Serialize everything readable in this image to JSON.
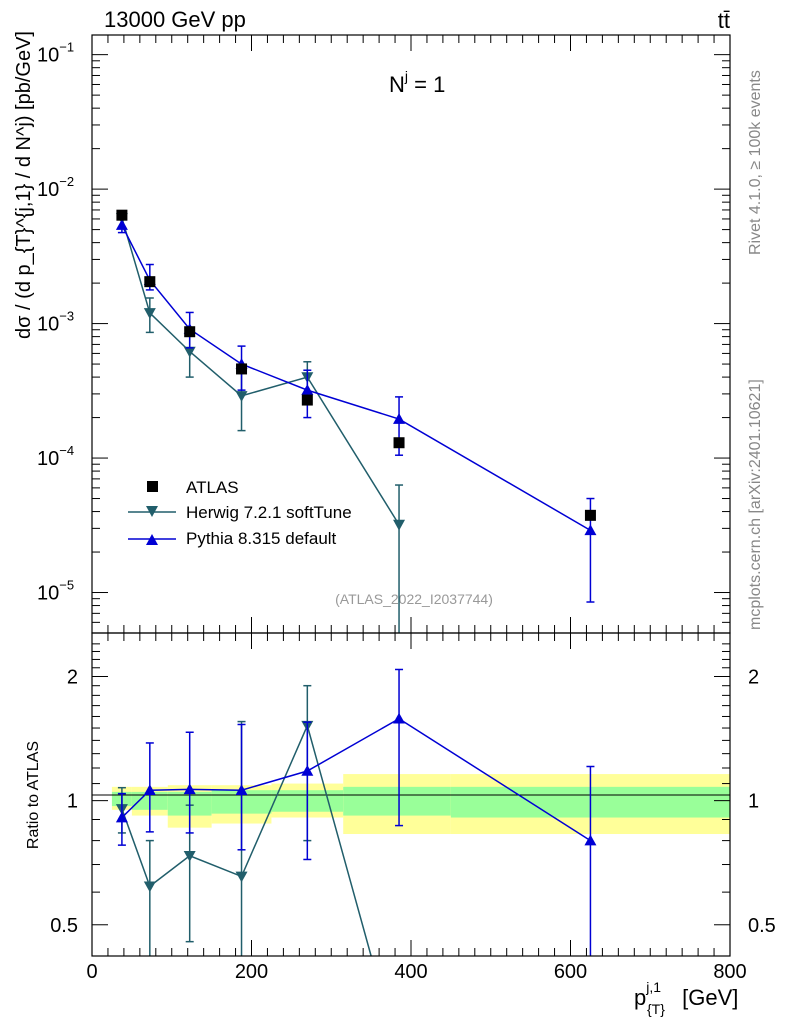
{
  "header": {
    "energy_label": "13000 GeV pp",
    "process_label": "tt̄"
  },
  "side_labels": {
    "rivet": "Rivet 4.1.0, ≥ 100k events",
    "mcplots": "mcplots.cern.ch [arXiv:2401.10621]"
  },
  "chart_data": [
    {
      "type": "line",
      "panel": "main",
      "title": "N^j = 1",
      "title_main": "N",
      "title_sup": "j",
      "title_rest": " = 1",
      "ylabel": "dσ / (d p_{T}^{j,1} / d N^j) [pb/GeV]",
      "yscale": "log",
      "ylim": [
        5e-06,
        0.14
      ],
      "xlim": [
        0,
        800
      ],
      "ytick_labels": [
        {
          "value": 0.1,
          "base": "10",
          "exp": "−1"
        },
        {
          "value": 0.01,
          "base": "10",
          "exp": "−2"
        },
        {
          "value": 0.001,
          "base": "10",
          "exp": "−3"
        },
        {
          "value": 0.0001,
          "base": "10",
          "exp": "−4"
        },
        {
          "value": 1e-05,
          "base": "10",
          "exp": "−5"
        }
      ],
      "watermark": "(ATLAS_2022_I2037744)",
      "legend_position": "bottom-left",
      "series": [
        {
          "name": "ATLAS",
          "style": "square-marker",
          "color": "#000000",
          "x": [
            37.5,
            72.5,
            122.5,
            187.5,
            270,
            385,
            625
          ],
          "y": [
            0.0064,
            0.00205,
            0.00087,
            0.00046,
            0.00027,
            0.00013,
            3.75e-05
          ]
        },
        {
          "name": "Herwig 7.2.1 softTune",
          "style": "line-triangle-down",
          "color": "#215e6b",
          "x": [
            37.5,
            72.5,
            122.5,
            187.5,
            270,
            385
          ],
          "y": [
            0.0061,
            0.0012,
            0.00062,
            0.00029,
            0.0004,
            3.2e-05
          ],
          "yerr_low": [
            0.0009,
            0.00034,
            0.00022,
            0.00013,
            0.00012,
            3.15e-05
          ],
          "yerr_high": [
            0.0006,
            0.00035,
            0.0002,
            0.00015,
            0.00012,
            3.1e-05
          ]
        },
        {
          "name": "Pythia 8.315 default",
          "style": "line-triangle-up",
          "color": "#0000d4",
          "x": [
            37.5,
            72.5,
            122.5,
            187.5,
            270,
            385,
            625
          ],
          "y": [
            0.0054,
            0.0021,
            0.00091,
            0.0005,
            0.00032,
            0.000195,
            2.9e-05
          ],
          "yerr_low": [
            0.00065,
            0.00032,
            0.00025,
            0.00018,
            0.00012,
            9e-05,
            2.05e-05
          ],
          "yerr_high": [
            0.0006,
            0.00065,
            0.0003,
            0.00018,
            0.00013,
            9e-05,
            2.1e-05
          ]
        }
      ]
    },
    {
      "type": "line",
      "panel": "ratio",
      "ylabel": "Ratio to ATLAS",
      "xlabel": "p_{T}^{j,1} [GeV]",
      "xlabel_main": "p",
      "xlabel_sup": "j,1",
      "xlabel_sub": "{T}",
      "xlabel_rest": " [GeV]",
      "yscale": "log",
      "ylim": [
        0.42,
        2.55
      ],
      "xlim": [
        0,
        800
      ],
      "xticks": [
        0,
        200,
        400,
        600,
        800
      ],
      "xtick_labels": [
        "0",
        "200",
        "400",
        "600",
        "800"
      ],
      "yticks": [
        0.5,
        1,
        2
      ],
      "ytick_labels": [
        "0.5",
        "1",
        "2"
      ],
      "reference": 1,
      "bins": [
        25,
        50,
        95,
        150,
        225,
        315,
        450,
        800
      ],
      "band_outer_color": "#ffff99",
      "band_inner_color": "#99ff99",
      "band_outer": {
        "low": [
          0.95,
          0.92,
          0.86,
          0.88,
          0.91,
          0.83,
          0.83
        ],
        "high": [
          1.08,
          1.08,
          1.09,
          1.09,
          1.1,
          1.16,
          1.16
        ]
      },
      "band_inner": {
        "low": [
          0.97,
          0.95,
          0.92,
          0.93,
          0.94,
          0.92,
          0.91
        ],
        "high": [
          1.05,
          1.05,
          1.05,
          1.06,
          1.06,
          1.08,
          1.08
        ]
      },
      "series": [
        {
          "name": "Herwig 7.2.1 softTune",
          "color": "#215e6b",
          "x": [
            37.5,
            72.5,
            122.5,
            187.5,
            270,
            350
          ],
          "y": [
            0.955,
            0.62,
            0.735,
            0.655,
            1.52,
            0.4
          ],
          "yerr_low": [
            0.12,
            0.22,
            0.28,
            0.3,
            0.72,
            0
          ],
          "yerr_high": [
            0.12,
            0.18,
            0.24,
            0.9,
            0.38,
            0
          ],
          "markers": [
            true,
            true,
            true,
            true,
            true,
            false
          ]
        },
        {
          "name": "Pythia 8.315 default",
          "color": "#0000d4",
          "x": [
            37.5,
            72.5,
            122.5,
            187.5,
            270,
            385,
            625
          ],
          "y": [
            0.91,
            1.06,
            1.065,
            1.06,
            1.18,
            1.58,
            0.8
          ],
          "yerr_low": [
            0.13,
            0.22,
            0.23,
            0.3,
            0.46,
            0.71,
            0.4
          ],
          "yerr_high": [
            0.13,
            0.32,
            0.4,
            0.47,
            0.37,
            0.5,
            0.41
          ],
          "markers": [
            true,
            true,
            true,
            true,
            true,
            true,
            true
          ]
        }
      ]
    }
  ]
}
